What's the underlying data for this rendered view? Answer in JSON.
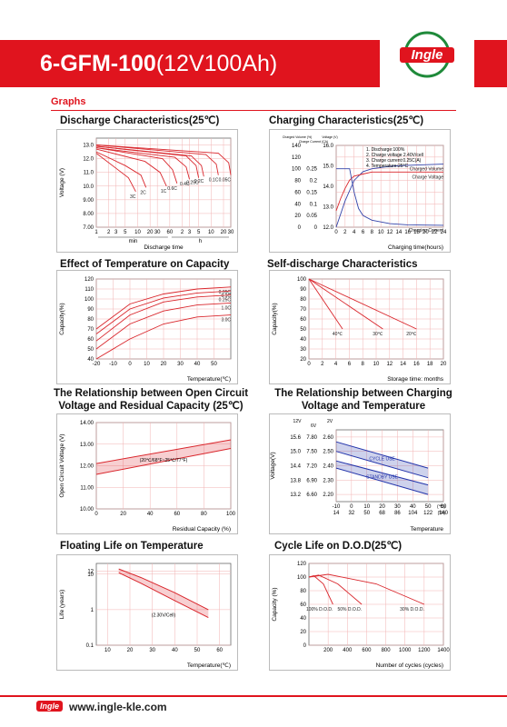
{
  "header": {
    "title_bold": "6-GFM-100",
    "title_rest": "(12V100Ah)",
    "logo": "Ingle"
  },
  "section_title": "Graphs",
  "charts": [
    {
      "type": "line",
      "title": "Discharge Characteristics(25℃)",
      "ylabel": "Voltage (V)",
      "xlabel": "Discharge time",
      "xscale": "log",
      "xlim": [
        1,
        1800
      ],
      "xticks": [
        1,
        2,
        3,
        5,
        10,
        20,
        30,
        60,
        {
          "value": 120,
          "label": "2"
        },
        {
          "value": 180,
          "label": "3"
        },
        {
          "value": 300,
          "label": "5"
        },
        {
          "value": 600,
          "label": "10"
        },
        {
          "value": 1200,
          "label": "20"
        },
        {
          "value": 1800,
          "label": "30"
        }
      ],
      "x_groups": [
        {
          "label": "min",
          "from": 1,
          "to": 60
        },
        {
          "label": "h",
          "from": 60,
          "to": 1800
        }
      ],
      "ylim": [
        7,
        13.5
      ],
      "yticks": [
        {
          "value": 7,
          "label": "7.00"
        },
        {
          "value": 8,
          "label": "8.00"
        },
        {
          "value": 9,
          "label": "9.00"
        },
        {
          "value": 10,
          "label": "10.0"
        },
        {
          "value": 11,
          "label": "11.0"
        },
        {
          "value": 12,
          "label": "12.0"
        },
        {
          "value": 13,
          "label": "13.0"
        }
      ],
      "grid": true,
      "color": "#d9262c",
      "series": [
        {
          "name": "3C",
          "x": [
            1,
            3,
            6,
            9
          ],
          "y": [
            12.4,
            11.3,
            10.6,
            9.6
          ]
        },
        {
          "name": "2C",
          "x": [
            1,
            5,
            12,
            16
          ],
          "y": [
            12.5,
            11.5,
            10.8,
            9.9
          ]
        },
        {
          "name": "1C",
          "x": [
            1,
            15,
            35,
            50
          ],
          "y": [
            12.7,
            11.8,
            11.0,
            10.0
          ]
        },
        {
          "name": "0.6C",
          "x": [
            1,
            40,
            70,
            90
          ],
          "y": [
            12.8,
            12.0,
            11.2,
            10.2
          ]
        },
        {
          "name": "0.4C",
          "x": [
            1,
            80,
            150,
            180
          ],
          "y": [
            12.8,
            12.1,
            11.4,
            10.5
          ]
        },
        {
          "name": "0.25C",
          "x": [
            1,
            150,
            260,
            300
          ],
          "y": [
            12.9,
            12.2,
            11.5,
            10.6
          ]
        },
        {
          "name": "0.2C",
          "x": [
            1,
            200,
            350,
            400
          ],
          "y": [
            12.9,
            12.2,
            11.5,
            10.7
          ]
        },
        {
          "name": "0.1C",
          "x": [
            1,
            450,
            800,
            900
          ],
          "y": [
            13.0,
            12.3,
            11.6,
            10.8
          ]
        },
        {
          "name": "0.05C",
          "x": [
            1,
            900,
            1600,
            1800
          ],
          "y": [
            13.0,
            12.4,
            11.7,
            10.8
          ]
        }
      ]
    },
    {
      "type": "line",
      "title": "Charging Characteristics(25℃)",
      "xlabel": "Charging time(hours)",
      "xlim": [
        0,
        24
      ],
      "xticks": [
        0,
        2,
        4,
        6,
        8,
        10,
        12,
        14,
        16,
        18,
        20,
        22,
        24
      ],
      "ylim": [
        0,
        140
      ],
      "yticks": [
        0,
        20,
        40,
        60,
        80,
        100,
        120,
        140
      ],
      "y2lim": [
        0,
        0.35
      ],
      "y2ticks": [
        0,
        0.05,
        0.1,
        0.15,
        0.2,
        0.25
      ],
      "y3lim": [
        12,
        16
      ],
      "y3ticks": [
        {
          "value": 12,
          "label": "12.0"
        },
        {
          "value": 13,
          "label": "13.0"
        },
        {
          "value": 14,
          "label": "14.0"
        },
        {
          "value": 15,
          "label": "15.0"
        },
        {
          "value": 16,
          "label": "16.0"
        }
      ],
      "yunits": [
        "Charged Volume (%)",
        "Charge Current (CA)",
        "Voltage (V)"
      ],
      "notes": [
        "1. Discharge:100%",
        "2. Charge voltage 2.40V/cell",
        "3. Charge current:0.25C(A)",
        "4. Temperature:25°C"
      ],
      "grid": true,
      "color": "#3344aa",
      "series": [
        {
          "name": "Charged Volume",
          "x": [
            0,
            2,
            4,
            6,
            8,
            12,
            16,
            24
          ],
          "y": [
            0,
            45,
            80,
            95,
            100,
            104,
            106,
            108
          ]
        },
        {
          "name": "Charge Voltage",
          "axis": "y3",
          "color": "#d9262c",
          "x": [
            0,
            1,
            2,
            3,
            4,
            6,
            8,
            12,
            24
          ],
          "y": [
            12.8,
            13.4,
            13.9,
            14.3,
            14.5,
            14.6,
            14.7,
            14.7,
            14.7
          ]
        },
        {
          "name": "Charging Current",
          "axis": "y2",
          "x": [
            0,
            3,
            4,
            5,
            6,
            8,
            12,
            16,
            24
          ],
          "y": [
            0.25,
            0.25,
            0.15,
            0.08,
            0.05,
            0.03,
            0.015,
            0.01,
            0.008
          ]
        }
      ]
    },
    {
      "type": "line",
      "title": "Effect of Temperature on Capacity",
      "ylabel": "Capacity(%)",
      "xlabel": "Temperature(℃)",
      "xlim": [
        -20,
        60
      ],
      "xticks": [
        -20,
        -10,
        0,
        10,
        20,
        30,
        40,
        50
      ],
      "ylim": [
        40,
        120
      ],
      "yticks": [
        40,
        50,
        60,
        70,
        80,
        90,
        100,
        110,
        120
      ],
      "grid": true,
      "color": "#d9262c",
      "series": [
        {
          "name": "0.05C",
          "x": [
            -20,
            0,
            20,
            40,
            60
          ],
          "y": [
            70,
            95,
            105,
            110,
            112
          ]
        },
        {
          "name": "0.1C",
          "x": [
            -20,
            0,
            20,
            40,
            60
          ],
          "y": [
            65,
            90,
            101,
            106,
            108
          ]
        },
        {
          "name": "0.25C",
          "x": [
            -20,
            0,
            20,
            40,
            60
          ],
          "y": [
            58,
            84,
            97,
            102,
            104
          ]
        },
        {
          "name": "1.0C",
          "x": [
            -20,
            0,
            20,
            40,
            60
          ],
          "y": [
            50,
            75,
            88,
            94,
            96
          ]
        },
        {
          "name": "3.0C",
          "x": [
            -20,
            0,
            20,
            40,
            60
          ],
          "y": [
            40,
            60,
            75,
            82,
            84
          ]
        }
      ]
    },
    {
      "type": "line",
      "title": "Self-discharge Characteristics",
      "ylabel": "Capacity(%)",
      "xlabel": "Storage time: months",
      "xlim": [
        0,
        20
      ],
      "xticks": [
        0,
        2,
        4,
        6,
        8,
        10,
        12,
        14,
        16,
        18,
        20
      ],
      "ylim": [
        20,
        100
      ],
      "yticks": [
        20,
        30,
        40,
        50,
        60,
        70,
        80,
        90,
        100
      ],
      "grid": true,
      "color": "#d9262c",
      "series": [
        {
          "name": "40℃",
          "x": [
            0,
            5
          ],
          "y": [
            100,
            50
          ]
        },
        {
          "name": "30℃",
          "x": [
            0,
            11
          ],
          "y": [
            100,
            50
          ]
        },
        {
          "name": "20℃",
          "x": [
            0,
            16
          ],
          "y": [
            100,
            50
          ]
        }
      ]
    },
    {
      "type": "line",
      "title": "The Relationship between Open Circuit Voltage and Residual Capacity (25℃)",
      "ylabel": "Open Circuit Voltage (V)",
      "xlabel": "Residual Capacity  (%)",
      "xlim": [
        0,
        100
      ],
      "xticks": [
        0,
        20,
        40,
        60,
        80,
        100
      ],
      "ylim": [
        10,
        14
      ],
      "yticks": [
        {
          "value": 10,
          "label": "10.00"
        },
        {
          "value": 11,
          "label": "11.00"
        },
        {
          "value": 12,
          "label": "12.00"
        },
        {
          "value": 13,
          "label": "13.00"
        },
        {
          "value": 14,
          "label": "14.00"
        }
      ],
      "notes": [
        "(20℃/68°F~25℃/77°F)"
      ],
      "grid": true,
      "band": true,
      "color": "#d9262c",
      "series": [
        {
          "x": [
            0,
            100
          ],
          "y": [
            12.1,
            13.2
          ]
        },
        {
          "x": [
            0,
            100
          ],
          "y": [
            11.6,
            12.8
          ]
        }
      ]
    },
    {
      "type": "line",
      "title": "The Relationship between Charging Voltage and Temperature",
      "ylabel": "Voltage(V)",
      "xlabel": "Temperature",
      "xlim": [
        -10,
        60
      ],
      "xticks": [
        -10,
        0,
        10,
        20,
        30,
        40,
        50,
        60
      ],
      "x2lim": [
        14,
        140
      ],
      "x2ticks": [
        14,
        32,
        50,
        68,
        86,
        104,
        122,
        140
      ],
      "x_units": [
        "(℃)",
        "(°F)"
      ],
      "ylim": [
        12.9,
        15.9
      ],
      "yticks": [
        {
          "value": 13.2,
          "label": "13.2"
        },
        {
          "value": 13.8,
          "label": "13.8"
        },
        {
          "value": 14.4,
          "label": "14.4"
        },
        {
          "value": 15,
          "label": "15.0"
        },
        {
          "value": 15.6,
          "label": "15.6"
        }
      ],
      "y2lim": [
        6.45,
        7.95
      ],
      "y2ticks": [
        {
          "value": 6.6,
          "label": "6.60"
        },
        {
          "value": 6.9,
          "label": "6.90"
        },
        {
          "value": 7.2,
          "label": "7.20"
        },
        {
          "value": 7.5,
          "label": "7.50"
        },
        {
          "value": 7.8,
          "label": "7.80"
        }
      ],
      "y3lim": [
        2.15,
        2.65
      ],
      "y3ticks": [
        {
          "value": 2.2,
          "label": "2.20"
        },
        {
          "value": 2.3,
          "label": "2.30"
        },
        {
          "value": 2.4,
          "label": "2.40"
        },
        {
          "value": 2.5,
          "label": "2.50"
        },
        {
          "value": 2.6,
          "label": "2.60"
        }
      ],
      "yunits": [
        "12V",
        "6V",
        "2V"
      ],
      "grid": true,
      "band": true,
      "color": "#2233aa",
      "series": [
        {
          "name": "CYCLE USE",
          "x": [
            -10,
            50
          ],
          "y": [
            15.4,
            14.3
          ]
        },
        {
          "x": [
            -10,
            50
          ],
          "y": [
            15.0,
            13.9
          ]
        },
        {
          "name": "STANDBY USE",
          "x": [
            -10,
            50
          ],
          "y": [
            14.6,
            13.6
          ]
        },
        {
          "x": [
            -10,
            50
          ],
          "y": [
            14.3,
            13.2
          ]
        }
      ]
    },
    {
      "type": "line",
      "title": "Floating Life on Temperature",
      "ylabel": "Life (years)",
      "xlabel": "Temperature(℃)",
      "xlim": [
        5,
        65
      ],
      "xticks": [
        10,
        20,
        30,
        40,
        50,
        60
      ],
      "yscale": "log",
      "ylim": [
        0.1,
        20
      ],
      "yticks": [
        0.1,
        1,
        10,
        12
      ],
      "notes": [
        "(2.30V/Cell)"
      ],
      "grid": true,
      "band": true,
      "color": "#d9262c",
      "series": [
        {
          "x": [
            15,
            25,
            40,
            55
          ],
          "y": [
            14,
            8,
            3,
            1.0
          ]
        },
        {
          "x": [
            15,
            25,
            40,
            55
          ],
          "y": [
            11,
            5.5,
            1.8,
            0.6
          ]
        }
      ]
    },
    {
      "type": "line",
      "title": "Cycle Life on D.O.D(25℃)",
      "ylabel": "Capacity (%)",
      "xlabel": "Number of cycles (cycles)",
      "xlim": [
        0,
        1400
      ],
      "xticks": [
        200,
        400,
        600,
        800,
        1000,
        1200,
        1400
      ],
      "ylim": [
        0,
        120
      ],
      "yticks": [
        0,
        20,
        40,
        60,
        80,
        100,
        120
      ],
      "grid": true,
      "color": "#d9262c",
      "series": [
        {
          "name": "100% D.O.D.",
          "x": [
            0,
            50,
            150,
            250
          ],
          "y": [
            100,
            102,
            90,
            60
          ]
        },
        {
          "name": "50% D.O.D.",
          "x": [
            0,
            100,
            300,
            550
          ],
          "y": [
            100,
            103,
            90,
            60
          ]
        },
        {
          "name": "30% D.O.D.",
          "x": [
            0,
            200,
            700,
            1200
          ],
          "y": [
            100,
            104,
            90,
            60
          ]
        }
      ]
    }
  ],
  "footer": {
    "logo": "Ingle",
    "url": "www.ingle-kle.com"
  }
}
